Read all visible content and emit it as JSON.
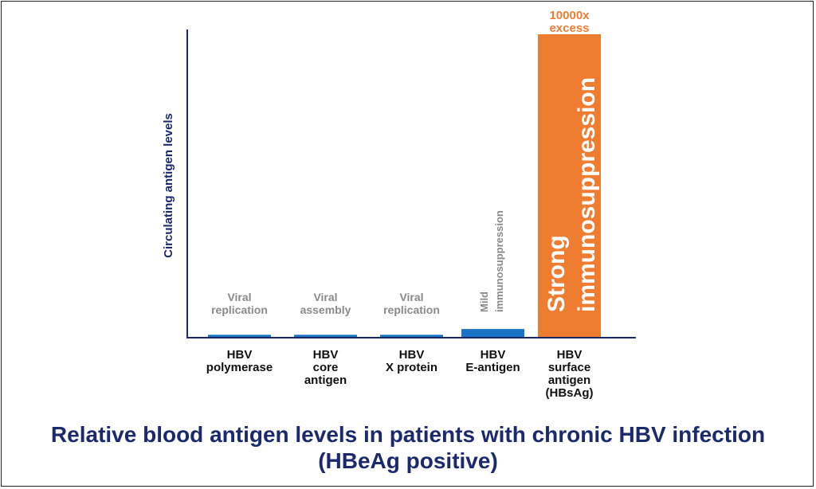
{
  "chart_data": {
    "type": "bar",
    "categories": [
      [
        "HBV",
        "polymerase"
      ],
      [
        "HBV",
        "core",
        "antigen"
      ],
      [
        "HBV",
        "X protein"
      ],
      [
        "HBV",
        "E-antigen"
      ],
      [
        "HBV",
        "surface",
        "antigen",
        "(HBsAg)"
      ]
    ],
    "values": [
      0.7,
      0.7,
      0.7,
      2.6,
      100
    ],
    "ylabel": "Circulating antigen levels",
    "ylim": [
      0,
      100
    ],
    "bar_labels": [
      {
        "lines": [
          "Viral",
          "replication"
        ],
        "orientation": "horizontal"
      },
      {
        "lines": [
          "Viral",
          "assembly"
        ],
        "orientation": "horizontal"
      },
      {
        "lines": [
          "Viral",
          "replication"
        ],
        "orientation": "horizontal"
      },
      {
        "lines": [
          "Mild",
          "immunosuppression"
        ],
        "orientation": "vertical"
      },
      {
        "lines": [
          "Strong",
          "immunosuppression"
        ],
        "orientation": "vertical-inside"
      }
    ],
    "annotation": [
      "10000x",
      "excess"
    ],
    "colors": {
      "blue": "#1a73c7",
      "orange": "#ee7d31",
      "axis": "#1a2a6c",
      "muted": "#8a8a8a"
    }
  },
  "title": {
    "line1": "Relative blood antigen levels in patients with chronic HBV infection",
    "line2": "(HBeAg positive)"
  }
}
